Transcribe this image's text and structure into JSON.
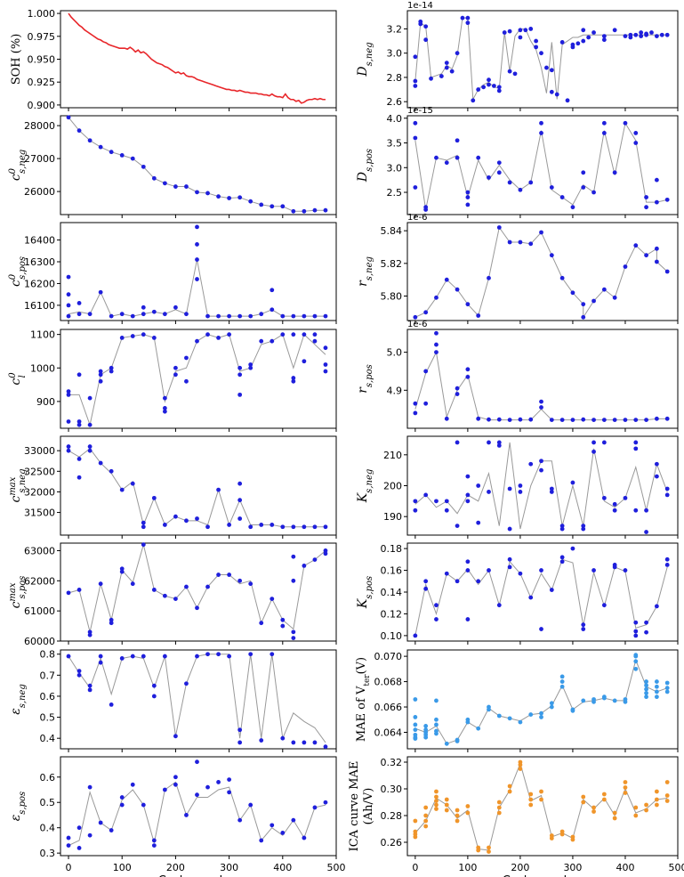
{
  "xlabel": "Cycle number",
  "x_ticks": [
    0,
    100,
    200,
    300,
    400,
    500
  ],
  "colors": {
    "blue": "#1f1fdc",
    "line": "#999999",
    "red": "#e8262a",
    "lightblue": "#3a9ae8",
    "orange": "#f0952a"
  },
  "chart_data": [
    {
      "id": "soh",
      "type": "line",
      "ylabel": "SOH (%)",
      "ylim": [
        0.897,
        1.003
      ],
      "yticks": [
        0.9,
        0.925,
        0.95,
        0.975,
        1.0
      ],
      "ytick_labels": [
        "0.900",
        "0.925",
        "0.950",
        "0.975",
        "1.000"
      ],
      "tick_offset": "",
      "color": "red",
      "x": [
        0,
        5,
        10,
        15,
        20,
        25,
        30,
        35,
        40,
        45,
        50,
        55,
        60,
        65,
        70,
        75,
        80,
        85,
        90,
        95,
        100,
        105,
        110,
        115,
        120,
        125,
        130,
        135,
        140,
        145,
        150,
        155,
        160,
        165,
        170,
        175,
        180,
        185,
        190,
        195,
        200,
        205,
        210,
        215,
        220,
        225,
        230,
        235,
        240,
        245,
        250,
        255,
        260,
        265,
        270,
        275,
        280,
        285,
        290,
        295,
        300,
        305,
        310,
        315,
        320,
        325,
        330,
        335,
        340,
        345,
        350,
        355,
        360,
        365,
        370,
        375,
        380,
        385,
        390,
        395,
        400,
        405,
        410,
        415,
        420,
        425,
        430,
        435,
        440,
        445,
        450,
        455,
        460,
        465,
        470,
        475,
        480
      ],
      "y": [
        1.0,
        0.996,
        0.993,
        0.99,
        0.987,
        0.985,
        0.982,
        0.98,
        0.978,
        0.976,
        0.974,
        0.972,
        0.971,
        0.969,
        0.968,
        0.966,
        0.965,
        0.964,
        0.963,
        0.962,
        0.962,
        0.962,
        0.961,
        0.963,
        0.961,
        0.958,
        0.96,
        0.957,
        0.958,
        0.956,
        0.953,
        0.95,
        0.948,
        0.946,
        0.945,
        0.944,
        0.942,
        0.941,
        0.939,
        0.937,
        0.935,
        0.936,
        0.934,
        0.935,
        0.932,
        0.931,
        0.931,
        0.93,
        0.928,
        0.927,
        0.926,
        0.925,
        0.924,
        0.923,
        0.922,
        0.921,
        0.92,
        0.919,
        0.918,
        0.917,
        0.917,
        0.916,
        0.916,
        0.915,
        0.916,
        0.915,
        0.914,
        0.914,
        0.913,
        0.913,
        0.913,
        0.912,
        0.912,
        0.911,
        0.911,
        0.91,
        0.912,
        0.91,
        0.909,
        0.909,
        0.908,
        0.912,
        0.908,
        0.906,
        0.906,
        0.904,
        0.905,
        0.902,
        0.903,
        0.905,
        0.906,
        0.906,
        0.907,
        0.906,
        0.907,
        0.906,
        0.906
      ],
      "line": null
    },
    {
      "id": "d_s_neg",
      "type": "scatter",
      "ylabel": "D_s,neg",
      "ylim": [
        2.55,
        3.35
      ],
      "yticks": [
        2.6,
        2.8,
        3.0,
        3.2
      ],
      "ytick_labels": [
        "2.6",
        "2.8",
        "3.0",
        "3.2"
      ],
      "tick_offset": "1e-14",
      "color": "blue",
      "x": [
        0,
        0,
        0,
        10,
        10,
        20,
        20,
        30,
        50,
        60,
        60,
        70,
        80,
        90,
        100,
        100,
        110,
        120,
        130,
        140,
        140,
        150,
        160,
        160,
        170,
        180,
        180,
        190,
        200,
        200,
        210,
        220,
        230,
        230,
        240,
        250,
        260,
        260,
        270,
        280,
        290,
        300,
        300,
        310,
        320,
        320,
        330,
        340,
        360,
        360,
        380,
        400,
        410,
        410,
        420,
        430,
        430,
        440,
        440,
        450,
        460,
        470,
        480
      ],
      "y": [
        2.97,
        2.77,
        2.73,
        3.26,
        3.24,
        3.22,
        3.11,
        2.79,
        2.81,
        2.92,
        2.88,
        2.85,
        3.0,
        3.29,
        3.25,
        3.29,
        2.61,
        2.7,
        2.72,
        2.78,
        2.74,
        2.73,
        2.69,
        2.72,
        3.17,
        3.18,
        2.85,
        2.83,
        3.13,
        3.19,
        3.19,
        3.2,
        3.1,
        3.05,
        3.0,
        2.88,
        2.86,
        2.68,
        2.66,
        3.09,
        2.61,
        3.07,
        3.05,
        3.08,
        3.1,
        3.19,
        3.13,
        3.17,
        3.14,
        3.11,
        3.19,
        3.14,
        3.15,
        3.13,
        3.15,
        3.17,
        3.14,
        3.15,
        3.16,
        3.17,
        3.14,
        3.15,
        3.15
      ],
      "line": {
        "x": [
          0,
          10,
          20,
          30,
          50,
          60,
          70,
          80,
          90,
          100,
          110,
          120,
          130,
          140,
          150,
          160,
          170,
          180,
          190,
          200,
          210,
          220,
          230,
          240,
          250,
          260,
          270,
          280,
          290,
          300,
          310,
          320,
          330,
          340,
          350,
          360,
          370,
          380,
          390,
          400,
          410,
          420,
          430,
          440,
          450,
          460,
          470,
          480
        ],
        "y": [
          2.77,
          3.25,
          3.22,
          2.8,
          2.83,
          2.9,
          2.87,
          2.98,
          3.29,
          3.29,
          2.62,
          2.7,
          2.74,
          2.76,
          2.72,
          2.71,
          3.17,
          2.85,
          3.14,
          3.2,
          3.2,
          3.1,
          3.03,
          2.88,
          2.67,
          3.09,
          2.62,
          3.07,
          3.1,
          3.13,
          3.13,
          3.15,
          3.15,
          3.15,
          3.15,
          3.15,
          3.15,
          3.15,
          3.15,
          3.15,
          3.15,
          3.15,
          3.15,
          3.15,
          3.15,
          3.15,
          3.15,
          3.15
        ]
      }
    }
  ]
}
